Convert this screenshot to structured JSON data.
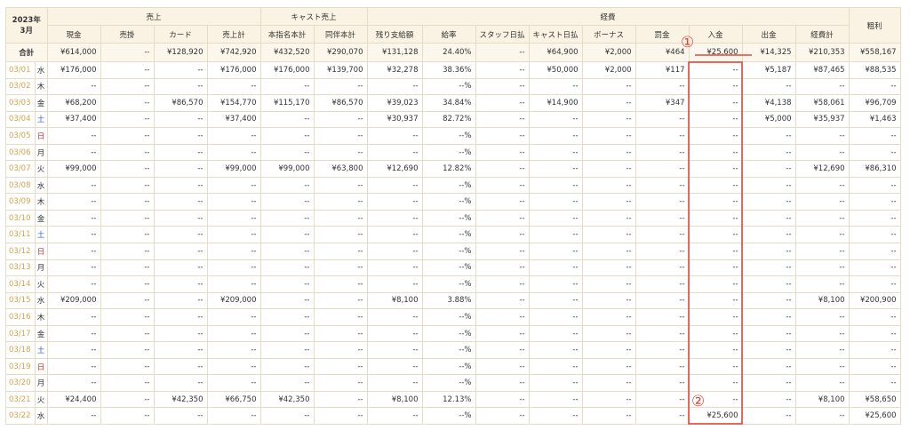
{
  "corner": {
    "year": "2023年",
    "month": "3月"
  },
  "groups": {
    "sales": "売上",
    "cast_sales": "キャスト売上",
    "expenses": "経費",
    "gross": "粗利"
  },
  "columns": [
    "現金",
    "売掛",
    "カード",
    "売上計",
    "本指名本計",
    "同伴本計",
    "残り支給額",
    "給率",
    "スタッフ日払",
    "キャスト日払",
    "ボーナス",
    "罰金",
    "入金",
    "出金",
    "経費計"
  ],
  "total": {
    "label": "合計",
    "cells": [
      "¥614,000",
      "--",
      "¥128,920",
      "¥742,920",
      "¥432,520",
      "¥290,070",
      "¥131,128",
      "24.40%",
      "--",
      "¥64,900",
      "¥2,000",
      "¥464",
      "¥25,600",
      "¥14,325",
      "¥210,353",
      "¥558,167"
    ]
  },
  "rows": [
    {
      "date": "03/01",
      "dow": "水",
      "cells": [
        "¥176,000",
        "--",
        "--",
        "¥176,000",
        "¥176,000",
        "¥139,700",
        "¥32,278",
        "38.36%",
        "--",
        "¥50,000",
        "¥2,000",
        "¥117",
        "--",
        "¥5,187",
        "¥87,465",
        "¥88,535"
      ]
    },
    {
      "date": "03/02",
      "dow": "木",
      "cells": [
        "--",
        "--",
        "--",
        "--",
        "--",
        "--",
        "--",
        "--%",
        "--",
        "--",
        "--",
        "--",
        "--",
        "--",
        "--",
        "--"
      ]
    },
    {
      "date": "03/03",
      "dow": "金",
      "cells": [
        "¥68,200",
        "--",
        "¥86,570",
        "¥154,770",
        "¥115,170",
        "¥86,570",
        "¥39,023",
        "34.84%",
        "--",
        "¥14,900",
        "--",
        "¥347",
        "--",
        "¥4,138",
        "¥58,061",
        "¥96,709"
      ]
    },
    {
      "date": "03/04",
      "dow": "土",
      "cells": [
        "¥37,400",
        "--",
        "--",
        "¥37,400",
        "--",
        "--",
        "¥30,937",
        "82.72%",
        "--",
        "--",
        "--",
        "--",
        "--",
        "¥5,000",
        "¥35,937",
        "¥1,463"
      ]
    },
    {
      "date": "03/05",
      "dow": "日",
      "cells": [
        "--",
        "--",
        "--",
        "--",
        "--",
        "--",
        "--",
        "--%",
        "--",
        "--",
        "--",
        "--",
        "--",
        "--",
        "--",
        "--"
      ]
    },
    {
      "date": "03/06",
      "dow": "月",
      "cells": [
        "--",
        "--",
        "--",
        "--",
        "--",
        "--",
        "--",
        "--%",
        "--",
        "--",
        "--",
        "--",
        "--",
        "--",
        "--",
        "--"
      ]
    },
    {
      "date": "03/07",
      "dow": "火",
      "cells": [
        "¥99,000",
        "--",
        "--",
        "¥99,000",
        "¥99,000",
        "¥63,800",
        "¥12,690",
        "12.82%",
        "--",
        "--",
        "--",
        "--",
        "--",
        "--",
        "¥12,690",
        "¥86,310"
      ]
    },
    {
      "date": "03/08",
      "dow": "水",
      "cells": [
        "--",
        "--",
        "--",
        "--",
        "--",
        "--",
        "--",
        "--%",
        "--",
        "--",
        "--",
        "--",
        "--",
        "--",
        "--",
        "--"
      ]
    },
    {
      "date": "03/09",
      "dow": "木",
      "cells": [
        "--",
        "--",
        "--",
        "--",
        "--",
        "--",
        "--",
        "--%",
        "--",
        "--",
        "--",
        "--",
        "--",
        "--",
        "--",
        "--"
      ]
    },
    {
      "date": "03/10",
      "dow": "金",
      "cells": [
        "--",
        "--",
        "--",
        "--",
        "--",
        "--",
        "--",
        "--%",
        "--",
        "--",
        "--",
        "--",
        "--",
        "--",
        "--",
        "--"
      ]
    },
    {
      "date": "03/11",
      "dow": "土",
      "cells": [
        "--",
        "--",
        "--",
        "--",
        "--",
        "--",
        "--",
        "--%",
        "--",
        "--",
        "--",
        "--",
        "--",
        "--",
        "--",
        "--"
      ]
    },
    {
      "date": "03/12",
      "dow": "日",
      "cells": [
        "--",
        "--",
        "--",
        "--",
        "--",
        "--",
        "--",
        "--%",
        "--",
        "--",
        "--",
        "--",
        "--",
        "--",
        "--",
        "--"
      ]
    },
    {
      "date": "03/13",
      "dow": "月",
      "cells": [
        "--",
        "--",
        "--",
        "--",
        "--",
        "--",
        "--",
        "--%",
        "--",
        "--",
        "--",
        "--",
        "--",
        "--",
        "--",
        "--"
      ]
    },
    {
      "date": "03/14",
      "dow": "火",
      "cells": [
        "--",
        "--",
        "--",
        "--",
        "--",
        "--",
        "--",
        "--%",
        "--",
        "--",
        "--",
        "--",
        "--",
        "--",
        "--",
        "--"
      ]
    },
    {
      "date": "03/15",
      "dow": "水",
      "cells": [
        "¥209,000",
        "--",
        "--",
        "¥209,000",
        "--",
        "--",
        "¥8,100",
        "3.88%",
        "--",
        "--",
        "--",
        "--",
        "--",
        "--",
        "¥8,100",
        "¥200,900"
      ]
    },
    {
      "date": "03/16",
      "dow": "木",
      "cells": [
        "--",
        "--",
        "--",
        "--",
        "--",
        "--",
        "--",
        "--%",
        "--",
        "--",
        "--",
        "--",
        "--",
        "--",
        "--",
        "--"
      ]
    },
    {
      "date": "03/17",
      "dow": "金",
      "cells": [
        "--",
        "--",
        "--",
        "--",
        "--",
        "--",
        "--",
        "--%",
        "--",
        "--",
        "--",
        "--",
        "--",
        "--",
        "--",
        "--"
      ]
    },
    {
      "date": "03/18",
      "dow": "土",
      "cells": [
        "--",
        "--",
        "--",
        "--",
        "--",
        "--",
        "--",
        "--%",
        "--",
        "--",
        "--",
        "--",
        "--",
        "--",
        "--",
        "--"
      ]
    },
    {
      "date": "03/19",
      "dow": "日",
      "cells": [
        "--",
        "--",
        "--",
        "--",
        "--",
        "--",
        "--",
        "--%",
        "--",
        "--",
        "--",
        "--",
        "--",
        "--",
        "--",
        "--"
      ]
    },
    {
      "date": "03/20",
      "dow": "月",
      "cells": [
        "--",
        "--",
        "--",
        "--",
        "--",
        "--",
        "--",
        "--%",
        "--",
        "--",
        "--",
        "--",
        "--",
        "--",
        "--",
        "--"
      ]
    },
    {
      "date": "03/21",
      "dow": "火",
      "cells": [
        "¥24,400",
        "--",
        "¥42,350",
        "¥66,750",
        "¥42,350",
        "--",
        "¥8,100",
        "12.13%",
        "--",
        "--",
        "--",
        "--",
        "--",
        "--",
        "¥8,100",
        "¥58,650"
      ]
    },
    {
      "date": "03/22",
      "dow": "水",
      "cells": [
        "--",
        "--",
        "--",
        "--",
        "--",
        "--",
        "--",
        "--%",
        "--",
        "--",
        "--",
        "--",
        "¥25,600",
        "--",
        "--",
        "¥25,600"
      ]
    }
  ],
  "annotations": {
    "marker_1": "①",
    "marker_2": "②",
    "color": "#e0483c"
  },
  "colors": {
    "header_bg": "#faf3e3",
    "border": "#e6dcc6",
    "date": "#d8a24a",
    "saturday": "#3366cc",
    "sunday": "#d93030"
  }
}
